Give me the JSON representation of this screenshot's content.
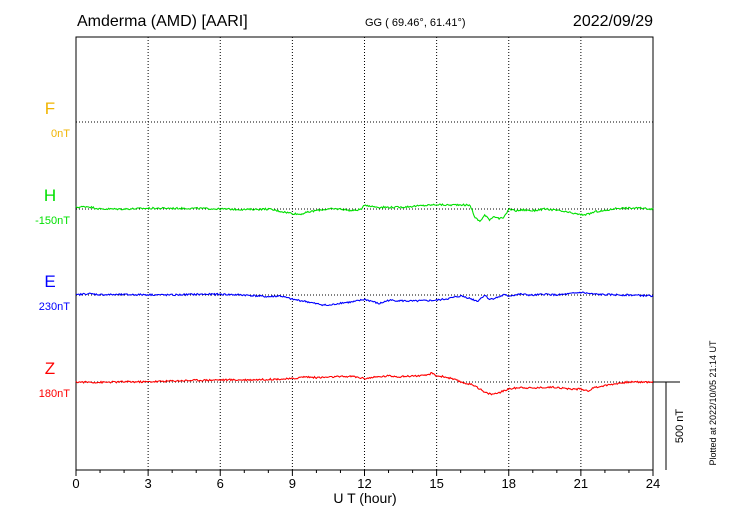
{
  "header": {
    "station": "Amderma (AMD)  [AARI]",
    "coords": "GG ( 69.46°,  61.41°)",
    "date": "2022/09/29"
  },
  "footer": {
    "plotted": "Plotted at 2022/10/05 21:14 UT"
  },
  "colors": {
    "F": "#f0b400",
    "H": "#00e000",
    "E": "#0000ff",
    "Z": "#ff0000"
  },
  "chart_data": {
    "type": "line",
    "xlabel": "U T (hour)",
    "xlim": [
      0,
      24
    ],
    "xticks": [
      "0",
      "3",
      "6",
      "9",
      "12",
      "15",
      "18",
      "21",
      "24"
    ],
    "scale_bar": "500 nT",
    "series": [
      {
        "name": "F",
        "baseline": "0nT",
        "x": [],
        "y": []
      },
      {
        "name": "H",
        "baseline": "-150nT",
        "x": [
          0,
          0.5,
          1,
          2,
          3,
          4,
          5,
          6,
          7,
          8,
          8.5,
          9,
          9.3,
          9.6,
          10,
          10.5,
          11,
          11.5,
          11.9,
          12,
          12.3,
          12.6,
          13,
          13.5,
          14,
          14.5,
          15,
          15.5,
          16,
          16.4,
          16.6,
          16.8,
          17,
          17.2,
          17.4,
          17.6,
          17.8,
          18,
          18.3,
          18.6,
          19,
          19.5,
          20,
          20.5,
          21,
          21.3,
          21.6,
          22,
          22.5,
          23,
          23.5,
          24
        ],
        "y": [
          -140,
          -136,
          -150,
          -150,
          -146,
          -146,
          -146,
          -150,
          -153,
          -150,
          -163,
          -175,
          -180,
          -170,
          -158,
          -150,
          -150,
          -160,
          -150,
          -125,
          -135,
          -140,
          -140,
          -140,
          -135,
          -130,
          -125,
          -128,
          -125,
          -130,
          -200,
          -220,
          -185,
          -210,
          -190,
          -205,
          -200,
          -150,
          -160,
          -155,
          -160,
          -150,
          -158,
          -170,
          -183,
          -180,
          -165,
          -160,
          -145,
          -145,
          -145,
          -150
        ]
      },
      {
        "name": "E",
        "baseline": "230nT",
        "x": [
          0,
          0.5,
          1,
          2,
          3,
          4,
          5,
          6,
          7,
          8,
          8.5,
          9,
          9.5,
          10,
          10.5,
          11,
          11.5,
          12,
          12.3,
          12.6,
          13,
          14,
          15,
          15.5,
          16,
          16.3,
          16.5,
          16.7,
          17,
          17.2,
          17.5,
          17.8,
          18,
          18.5,
          19,
          19.5,
          20,
          20.5,
          21,
          21.5,
          22,
          23,
          24
        ],
        "y": [
          230,
          238,
          232,
          232,
          232,
          230,
          234,
          234,
          230,
          220,
          225,
          205,
          195,
          180,
          170,
          185,
          190,
          205,
          195,
          180,
          200,
          195,
          200,
          210,
          225,
          215,
          205,
          195,
          230,
          205,
          215,
          230,
          225,
          235,
          228,
          235,
          230,
          236,
          245,
          235,
          232,
          230,
          225
        ]
      },
      {
        "name": "Z",
        "baseline": "180nT",
        "x": [
          0,
          1,
          2,
          3,
          4,
          5,
          6,
          7,
          8,
          9,
          9.5,
          10,
          11,
          11.5,
          12,
          12.5,
          13,
          13.5,
          14,
          14.5,
          14.8,
          15,
          15.3,
          15.6,
          16,
          16.3,
          16.6,
          17,
          17.3,
          17.6,
          18,
          18.5,
          19,
          19.5,
          20,
          20.5,
          21,
          21.3,
          21.6,
          22,
          22.5,
          23,
          24
        ],
        "y": [
          180,
          178,
          181,
          181,
          186,
          190,
          192,
          192,
          195,
          198,
          210,
          205,
          210,
          212,
          200,
          208,
          215,
          210,
          215,
          215,
          230,
          215,
          210,
          200,
          180,
          170,
          160,
          120,
          110,
          120,
          140,
          150,
          145,
          150,
          150,
          140,
          140,
          130,
          150,
          160,
          172,
          180,
          180
        ]
      }
    ]
  }
}
